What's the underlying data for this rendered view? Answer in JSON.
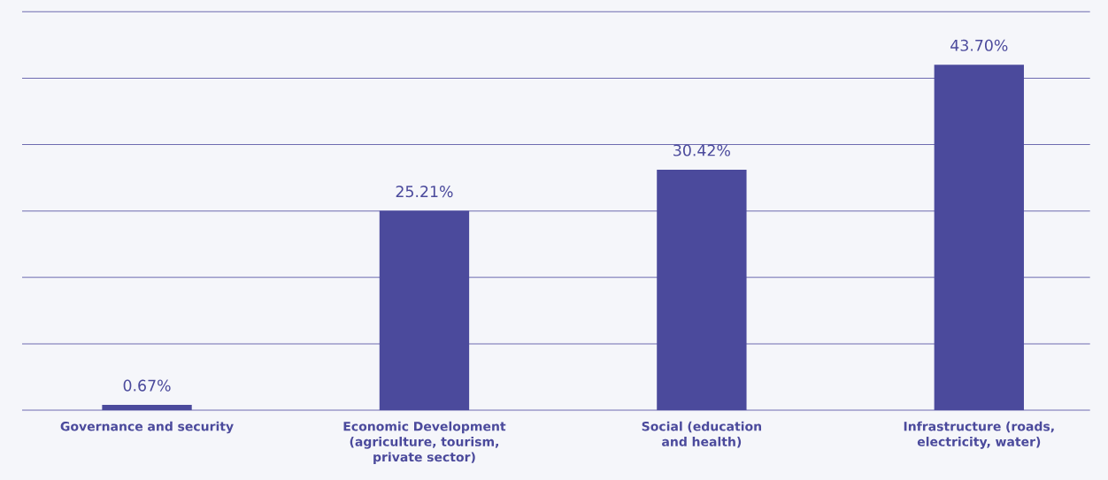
{
  "chart_data": {
    "type": "bar",
    "categories": [
      "Governance and security",
      "Economic Development (agriculture, tourism, private sector)",
      "Social (education and health)",
      "Infrastructure (roads, electricity, water)"
    ],
    "values": [
      0.67,
      25.21,
      30.42,
      43.7
    ],
    "value_labels": [
      "0.67%",
      "25.21%",
      "30.42%",
      "43.70%"
    ],
    "color": "#4b4a9c",
    "ylim": [
      0,
      50.4
    ],
    "yticks": [
      {
        "value": 0,
        "label": null
      },
      {
        "value": 8.4,
        "label": null
      },
      {
        "value": 16.8,
        "label": null
      },
      {
        "value": 25.2,
        "label": null
      },
      {
        "value": 33.6,
        "label": null
      },
      {
        "value": 42,
        "label": null
      },
      {
        "value": 50.4,
        "label": null
      }
    ],
    "grid": "y",
    "tick_labels": "x"
  }
}
